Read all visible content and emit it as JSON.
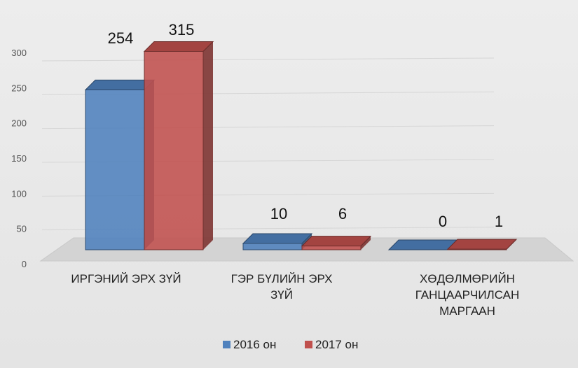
{
  "chart_data": {
    "type": "bar",
    "style": "3d-clustered",
    "categories": [
      [
        "ИРГЭНИЙ ЭРХ ЗҮЙ"
      ],
      [
        "ГЭР БҮЛИЙН ЭРХ",
        "ЗҮЙ"
      ],
      [
        "ХӨДӨЛМӨРИЙН",
        "ГАНЦААРЧИЛСАН",
        "МАРГААН"
      ]
    ],
    "series": [
      {
        "name": "2016 он",
        "values": [
          254,
          10,
          0
        ],
        "color": "#4f81bd"
      },
      {
        "name": "2017 он",
        "values": [
          315,
          6,
          1
        ],
        "color": "#c0504d"
      }
    ],
    "ylim": [
      0,
      300
    ],
    "yticks": [
      0,
      50,
      100,
      150,
      200,
      250,
      300
    ],
    "grid": true,
    "legend_position": "bottom"
  }
}
